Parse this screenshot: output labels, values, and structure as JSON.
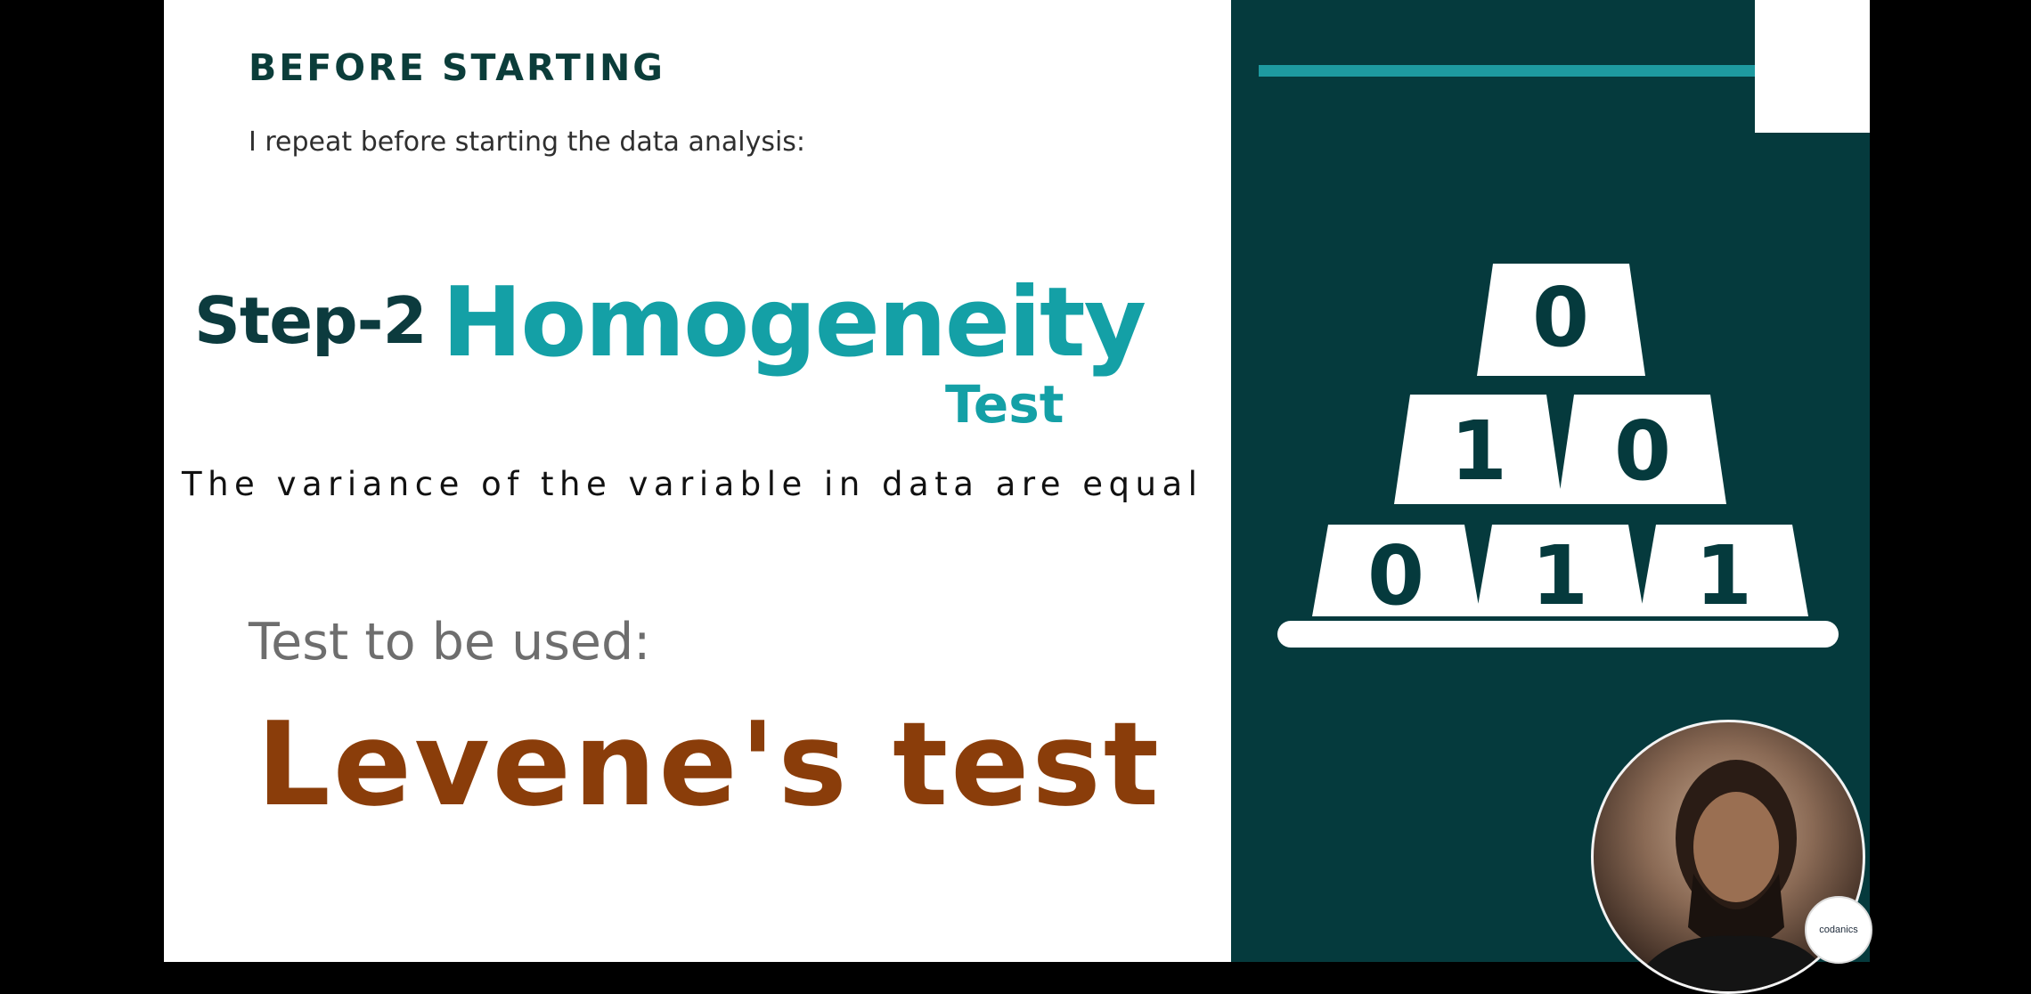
{
  "slide": {
    "heading": "BEFORE STARTING",
    "intro": "I repeat before starting the data analysis:",
    "step_label": "Step-2",
    "step_title": "Homogeneity",
    "step_title_2": "Test",
    "definition": "The variance of the variable in data are equal",
    "test_prompt": "Test to be used:",
    "test_name": "Levene's test"
  },
  "pyramid": {
    "top_row": [
      "0"
    ],
    "middle_row": [
      "1",
      "0"
    ],
    "bottom_row": [
      "0",
      "1",
      "1"
    ]
  },
  "logo": {
    "text": "codanics"
  },
  "colors": {
    "dark_teal": "#053a3d",
    "accent_teal": "#14a0a6",
    "heading": "#0b3d3a",
    "levene_brown": "#8a3d0a",
    "muted_gray": "#6e6e6e"
  }
}
